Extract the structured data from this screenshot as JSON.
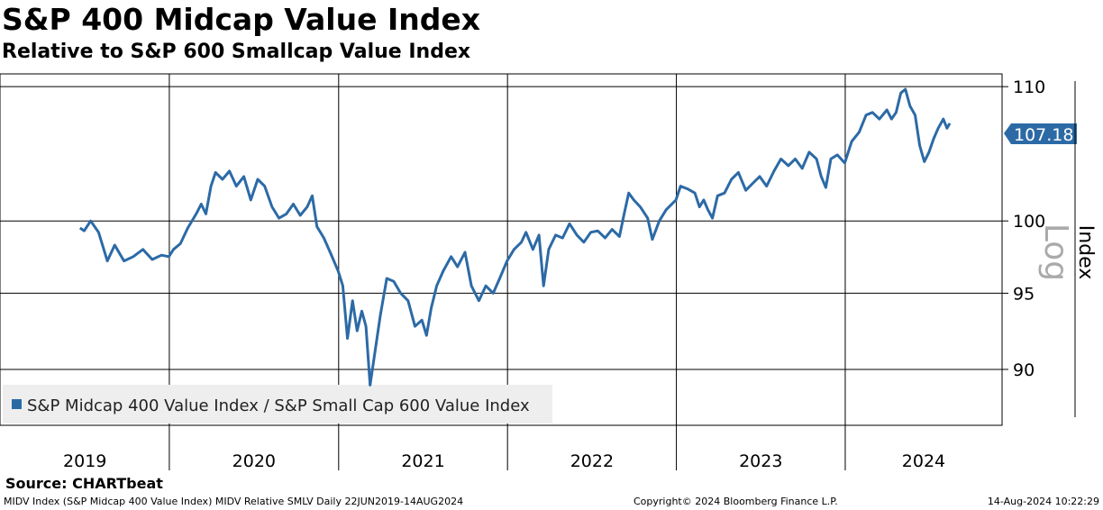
{
  "title": "S&P 400 Midcap Value Index",
  "subtitle": "Relative to S&P 600 Smallcap Value Index",
  "source": "Source: CHARTbeat",
  "footer": {
    "left": "MIDV Index (S&P Midcap 400 Value Index) MIDV Relative SMLV  Daily 22JUN2019-14AUG2024",
    "center": "Copyright© 2024 Bloomberg Finance L.P.",
    "right": "14-Aug-2024 10:22:29"
  },
  "colors": {
    "series": "#2c6aa6",
    "grid": "#000000",
    "legend_bg": "#eeeeee"
  },
  "chart_data": {
    "type": "line",
    "title": "S&P 400 Midcap Value Index",
    "subtitle": "Relative to S&P 600 Smallcap Value Index",
    "ylabel": "Index",
    "scale_label": "Log",
    "y_scale": "log",
    "ylim": [
      86.5,
      111
    ],
    "yticks": [
      "110",
      "100",
      "95",
      "90"
    ],
    "last_value_label": "107.18",
    "grid": true,
    "legend_position": "bottom-left",
    "years": [
      "2019",
      "2020",
      "2021",
      "2022",
      "2023",
      "2024"
    ],
    "series": [
      {
        "name": "S&P Midcap 400 Value Index / S&P Small Cap 600 Value Index",
        "points": [
          [
            "2019-06-22",
            99.5
          ],
          [
            "2019-07-01",
            99.3
          ],
          [
            "2019-07-15",
            100.0
          ],
          [
            "2019-08-01",
            99.2
          ],
          [
            "2019-08-20",
            97.2
          ],
          [
            "2019-09-05",
            98.3
          ],
          [
            "2019-09-25",
            97.2
          ],
          [
            "2019-10-15",
            97.5
          ],
          [
            "2019-11-05",
            98.0
          ],
          [
            "2019-11-25",
            97.3
          ],
          [
            "2019-12-15",
            97.6
          ],
          [
            "2019-12-31",
            97.5
          ],
          [
            "2020-01-10",
            98.0
          ],
          [
            "2020-01-25",
            98.4
          ],
          [
            "2020-02-10",
            99.5
          ],
          [
            "2020-02-28",
            100.5
          ],
          [
            "2020-03-10",
            101.2
          ],
          [
            "2020-03-20",
            100.5
          ],
          [
            "2020-03-31",
            102.5
          ],
          [
            "2020-04-10",
            103.5
          ],
          [
            "2020-04-25",
            103.0
          ],
          [
            "2020-05-10",
            103.6
          ],
          [
            "2020-05-25",
            102.5
          ],
          [
            "2020-06-10",
            103.2
          ],
          [
            "2020-06-25",
            101.5
          ],
          [
            "2020-07-10",
            103.0
          ],
          [
            "2020-07-25",
            102.5
          ],
          [
            "2020-08-10",
            101.0
          ],
          [
            "2020-08-25",
            100.2
          ],
          [
            "2020-09-10",
            100.5
          ],
          [
            "2020-09-25",
            101.2
          ],
          [
            "2020-10-10",
            100.4
          ],
          [
            "2020-10-25",
            101.0
          ],
          [
            "2020-11-05",
            101.8
          ],
          [
            "2020-11-15",
            99.6
          ],
          [
            "2020-11-30",
            98.8
          ],
          [
            "2020-12-15",
            97.7
          ],
          [
            "2020-12-31",
            96.5
          ],
          [
            "2021-01-10",
            95.5
          ],
          [
            "2021-01-20",
            92.0
          ],
          [
            "2021-01-31",
            94.5
          ],
          [
            "2021-02-10",
            92.5
          ],
          [
            "2021-02-20",
            93.8
          ],
          [
            "2021-03-01",
            92.8
          ],
          [
            "2021-03-10",
            89.0
          ],
          [
            "2021-03-20",
            91.0
          ],
          [
            "2021-04-01",
            93.5
          ],
          [
            "2021-04-15",
            96.0
          ],
          [
            "2021-04-30",
            95.8
          ],
          [
            "2021-05-15",
            95.0
          ],
          [
            "2021-05-31",
            94.5
          ],
          [
            "2021-06-15",
            92.8
          ],
          [
            "2021-06-30",
            93.2
          ],
          [
            "2021-07-10",
            92.2
          ],
          [
            "2021-07-20",
            94.0
          ],
          [
            "2021-08-01",
            95.5
          ],
          [
            "2021-08-15",
            96.5
          ],
          [
            "2021-09-01",
            97.5
          ],
          [
            "2021-09-15",
            96.8
          ],
          [
            "2021-10-01",
            97.8
          ],
          [
            "2021-10-15",
            95.5
          ],
          [
            "2021-10-31",
            94.5
          ],
          [
            "2021-11-15",
            95.5
          ],
          [
            "2021-12-01",
            95.0
          ],
          [
            "2021-12-15",
            96.0
          ],
          [
            "2021-12-31",
            97.2
          ],
          [
            "2022-01-15",
            98.0
          ],
          [
            "2022-01-31",
            98.5
          ],
          [
            "2022-02-10",
            99.2
          ],
          [
            "2022-02-25",
            98.0
          ],
          [
            "2022-03-10",
            99.0
          ],
          [
            "2022-03-20",
            95.5
          ],
          [
            "2022-03-31",
            98.0
          ],
          [
            "2022-04-15",
            99.0
          ],
          [
            "2022-04-30",
            98.8
          ],
          [
            "2022-05-15",
            99.8
          ],
          [
            "2022-05-31",
            99.0
          ],
          [
            "2022-06-15",
            98.5
          ],
          [
            "2022-06-30",
            99.2
          ],
          [
            "2022-07-15",
            99.3
          ],
          [
            "2022-07-31",
            98.8
          ],
          [
            "2022-08-15",
            99.4
          ],
          [
            "2022-08-31",
            98.9
          ],
          [
            "2022-09-10",
            100.5
          ],
          [
            "2022-09-20",
            102.0
          ],
          [
            "2022-10-01",
            101.5
          ],
          [
            "2022-10-15",
            101.0
          ],
          [
            "2022-10-31",
            100.2
          ],
          [
            "2022-11-10",
            98.7
          ],
          [
            "2022-11-25",
            100.0
          ],
          [
            "2022-12-10",
            100.8
          ],
          [
            "2022-12-31",
            101.5
          ],
          [
            "2023-01-10",
            102.5
          ],
          [
            "2023-01-25",
            102.3
          ],
          [
            "2023-02-10",
            102.0
          ],
          [
            "2023-02-20",
            101.0
          ],
          [
            "2023-03-01",
            101.5
          ],
          [
            "2023-03-10",
            100.8
          ],
          [
            "2023-03-20",
            100.2
          ],
          [
            "2023-03-31",
            101.8
          ],
          [
            "2023-04-15",
            102.0
          ],
          [
            "2023-04-30",
            103.0
          ],
          [
            "2023-05-15",
            103.5
          ],
          [
            "2023-05-31",
            102.2
          ],
          [
            "2023-06-15",
            102.7
          ],
          [
            "2023-06-30",
            103.2
          ],
          [
            "2023-07-15",
            102.5
          ],
          [
            "2023-07-31",
            103.6
          ],
          [
            "2023-08-15",
            104.5
          ],
          [
            "2023-08-31",
            104.0
          ],
          [
            "2023-09-15",
            104.5
          ],
          [
            "2023-09-30",
            103.8
          ],
          [
            "2023-10-15",
            105.0
          ],
          [
            "2023-10-31",
            104.5
          ],
          [
            "2023-11-10",
            103.2
          ],
          [
            "2023-11-20",
            102.4
          ],
          [
            "2023-12-01",
            104.5
          ],
          [
            "2023-12-15",
            104.8
          ],
          [
            "2023-12-31",
            104.2
          ],
          [
            "2024-01-15",
            105.8
          ],
          [
            "2024-01-31",
            106.5
          ],
          [
            "2024-02-15",
            107.8
          ],
          [
            "2024-02-29",
            108.0
          ],
          [
            "2024-03-15",
            107.5
          ],
          [
            "2024-03-31",
            108.2
          ],
          [
            "2024-04-10",
            107.5
          ],
          [
            "2024-04-20",
            108.0
          ],
          [
            "2024-04-30",
            109.5
          ],
          [
            "2024-05-10",
            109.8
          ],
          [
            "2024-05-20",
            108.5
          ],
          [
            "2024-05-31",
            107.8
          ],
          [
            "2024-06-10",
            105.5
          ],
          [
            "2024-06-20",
            104.3
          ],
          [
            "2024-06-30",
            105.0
          ],
          [
            "2024-07-10",
            106.0
          ],
          [
            "2024-07-20",
            106.8
          ],
          [
            "2024-07-31",
            107.5
          ],
          [
            "2024-08-08",
            106.8
          ],
          [
            "2024-08-14",
            107.18
          ]
        ]
      }
    ]
  }
}
